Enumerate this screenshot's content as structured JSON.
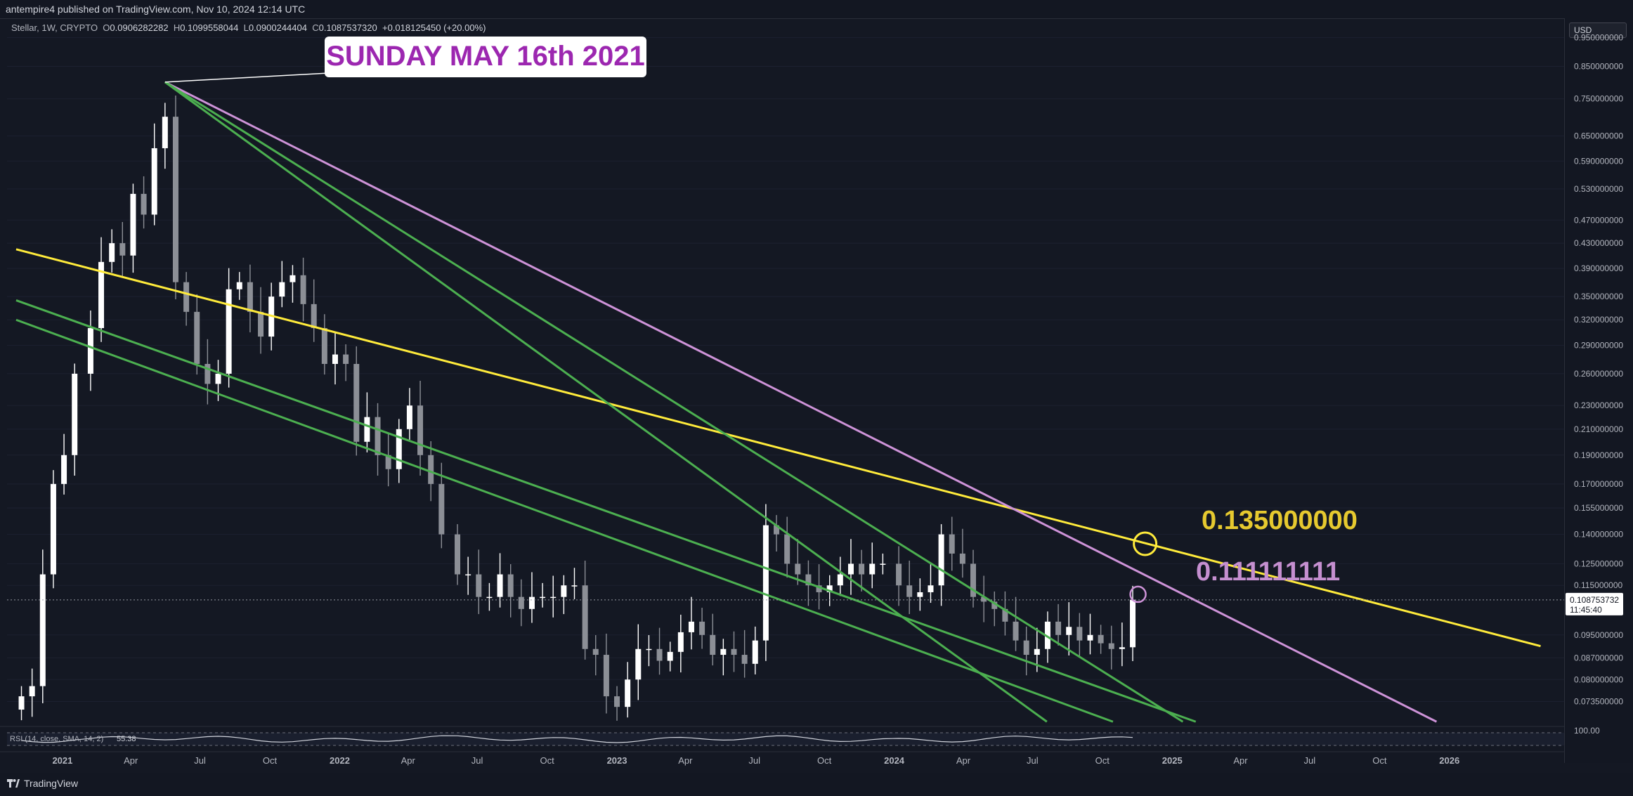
{
  "header": {
    "publisher": "antempire4 published on TradingView.com, Nov 10, 2024 12:14 UTC"
  },
  "legend": {
    "symbol": "Stellar, 1W, CRYPTO",
    "O_label": "O",
    "O": "0.0906282282",
    "H_label": "H",
    "H": "0.1099558044",
    "L_label": "L",
    "L": "0.0900244404",
    "C_label": "C",
    "C": "0.1087537320",
    "change": "+0.018125450 (+20.00%)"
  },
  "axis": {
    "currency": "USD"
  },
  "rsi": {
    "label": "RSI (14, close, SMA, 14, 2)",
    "value": "55.38",
    "scale_top": "100.00"
  },
  "brand": {
    "name": "TradingView"
  },
  "colors": {
    "bg": "#141823",
    "bull": "#ffffff",
    "bear": "#8c8f96",
    "yellow": "#ffeb3b",
    "purple": "#ce93d8",
    "green": "#4caf50",
    "callout": "#9c27b0"
  },
  "chart_data": {
    "type": "candlestick",
    "y_scale": "log",
    "ylim": [
      0.068,
      0.98
    ],
    "x_tick_labels": [
      "2021",
      "Apr",
      "Jul",
      "Oct",
      "2022",
      "Apr",
      "Jul",
      "Oct",
      "2023",
      "Apr",
      "Jul",
      "Oct",
      "2024",
      "Apr",
      "Jul",
      "Oct",
      "2025",
      "Apr",
      "Jul",
      "Oct",
      "2026"
    ],
    "y_tick_labels": [
      "0.950000000",
      "0.850000000",
      "0.750000000",
      "0.650000000",
      "0.590000000",
      "0.530000000",
      "0.470000000",
      "0.430000000",
      "0.390000000",
      "0.350000000",
      "0.320000000",
      "0.290000000",
      "0.260000000",
      "0.230000000",
      "0.210000000",
      "0.190000000",
      "0.170000000",
      "0.155000000",
      "0.140000000",
      "0.125000000",
      "0.115000000",
      "0.095000000",
      "0.087000000",
      "0.080000000",
      "0.073500000"
    ],
    "last_price": "0.108753732",
    "countdown": "11:45:40",
    "annotations": [
      {
        "text": "SUNDAY MAY 16th 2021",
        "target_date": "2021-05-16",
        "target_price": 0.8
      },
      {
        "text": "0.135000000",
        "price": 0.135,
        "color": "yellow"
      },
      {
        "text": "0.111111111",
        "price": 0.111111111,
        "color": "purple"
      }
    ],
    "trendlines": [
      {
        "color": "yellow",
        "from": [
          "2020-11-01",
          0.42
        ],
        "to": [
          "2026-05-01",
          0.091
        ]
      },
      {
        "color": "purple",
        "from": [
          "2021-05-16",
          0.8
        ],
        "to": [
          "2025-12-15",
          0.068
        ]
      },
      {
        "color": "green",
        "from": [
          "2021-05-16",
          0.8
        ],
        "to": [
          "2024-07-20",
          0.068
        ]
      },
      {
        "color": "green",
        "from": [
          "2021-05-16",
          0.8
        ],
        "to": [
          "2025-01-15",
          0.068
        ]
      },
      {
        "color": "green",
        "from": [
          "2020-11-01",
          0.345
        ],
        "to": [
          "2025-02-01",
          0.068
        ]
      },
      {
        "color": "green",
        "from": [
          "2020-11-01",
          0.32
        ],
        "to": [
          "2024-10-15",
          0.068
        ]
      }
    ],
    "weekly_close": [
      [
        "2020-11-08",
        0.075
      ],
      [
        "2020-11-22",
        0.078
      ],
      [
        "2020-12-06",
        0.12
      ],
      [
        "2020-12-20",
        0.17
      ],
      [
        "2021-01-03",
        0.19
      ],
      [
        "2021-01-17",
        0.26
      ],
      [
        "2021-02-07",
        0.31
      ],
      [
        "2021-02-21",
        0.4
      ],
      [
        "2021-03-07",
        0.43
      ],
      [
        "2021-03-21",
        0.41
      ],
      [
        "2021-04-04",
        0.52
      ],
      [
        "2021-04-18",
        0.48
      ],
      [
        "2021-05-02",
        0.62
      ],
      [
        "2021-05-16",
        0.7
      ],
      [
        "2021-05-30",
        0.37
      ],
      [
        "2021-06-13",
        0.33
      ],
      [
        "2021-06-27",
        0.27
      ],
      [
        "2021-07-11",
        0.25
      ],
      [
        "2021-07-25",
        0.26
      ],
      [
        "2021-08-08",
        0.36
      ],
      [
        "2021-08-22",
        0.37
      ],
      [
        "2021-09-05",
        0.33
      ],
      [
        "2021-09-19",
        0.3
      ],
      [
        "2021-10-03",
        0.35
      ],
      [
        "2021-10-17",
        0.37
      ],
      [
        "2021-10-31",
        0.38
      ],
      [
        "2021-11-14",
        0.34
      ],
      [
        "2021-11-28",
        0.31
      ],
      [
        "2021-12-12",
        0.27
      ],
      [
        "2021-12-26",
        0.28
      ],
      [
        "2022-01-09",
        0.27
      ],
      [
        "2022-01-23",
        0.2
      ],
      [
        "2022-02-06",
        0.22
      ],
      [
        "2022-02-20",
        0.19
      ],
      [
        "2022-03-06",
        0.18
      ],
      [
        "2022-03-20",
        0.21
      ],
      [
        "2022-04-03",
        0.23
      ],
      [
        "2022-04-17",
        0.19
      ],
      [
        "2022-05-01",
        0.17
      ],
      [
        "2022-05-15",
        0.14
      ],
      [
        "2022-06-05",
        0.12
      ],
      [
        "2022-06-19",
        0.12
      ],
      [
        "2022-07-03",
        0.11
      ],
      [
        "2022-07-17",
        0.11
      ],
      [
        "2022-07-31",
        0.12
      ],
      [
        "2022-08-14",
        0.11
      ],
      [
        "2022-08-28",
        0.105
      ],
      [
        "2022-09-11",
        0.11
      ],
      [
        "2022-09-25",
        0.11
      ],
      [
        "2022-10-09",
        0.11
      ],
      [
        "2022-10-23",
        0.115
      ],
      [
        "2022-11-06",
        0.115
      ],
      [
        "2022-11-20",
        0.09
      ],
      [
        "2022-12-04",
        0.088
      ],
      [
        "2022-12-18",
        0.075
      ],
      [
        "2023-01-01",
        0.072
      ],
      [
        "2023-01-15",
        0.08
      ],
      [
        "2023-01-29",
        0.09
      ],
      [
        "2023-02-12",
        0.09
      ],
      [
        "2023-02-26",
        0.086
      ],
      [
        "2023-03-12",
        0.089
      ],
      [
        "2023-03-26",
        0.096
      ],
      [
        "2023-04-09",
        0.1
      ],
      [
        "2023-04-23",
        0.095
      ],
      [
        "2023-05-07",
        0.088
      ],
      [
        "2023-05-21",
        0.09
      ],
      [
        "2023-06-04",
        0.088
      ],
      [
        "2023-06-18",
        0.085
      ],
      [
        "2023-07-02",
        0.093
      ],
      [
        "2023-07-16",
        0.145
      ],
      [
        "2023-07-30",
        0.14
      ],
      [
        "2023-08-13",
        0.125
      ],
      [
        "2023-08-27",
        0.12
      ],
      [
        "2023-09-10",
        0.115
      ],
      [
        "2023-09-24",
        0.112
      ],
      [
        "2023-10-08",
        0.115
      ],
      [
        "2023-10-22",
        0.12
      ],
      [
        "2023-11-05",
        0.125
      ],
      [
        "2023-11-19",
        0.12
      ],
      [
        "2023-12-03",
        0.125
      ],
      [
        "2023-12-17",
        0.125
      ],
      [
        "2024-01-07",
        0.115
      ],
      [
        "2024-01-21",
        0.11
      ],
      [
        "2024-02-04",
        0.112
      ],
      [
        "2024-02-18",
        0.115
      ],
      [
        "2024-03-03",
        0.14
      ],
      [
        "2024-03-17",
        0.13
      ],
      [
        "2024-03-31",
        0.125
      ],
      [
        "2024-04-14",
        0.11
      ],
      [
        "2024-04-28",
        0.108
      ],
      [
        "2024-05-12",
        0.105
      ],
      [
        "2024-05-26",
        0.1
      ],
      [
        "2024-06-09",
        0.093
      ],
      [
        "2024-06-23",
        0.088
      ],
      [
        "2024-07-07",
        0.09
      ],
      [
        "2024-07-21",
        0.1
      ],
      [
        "2024-08-04",
        0.095
      ],
      [
        "2024-08-18",
        0.098
      ],
      [
        "2024-09-01",
        0.093
      ],
      [
        "2024-09-15",
        0.095
      ],
      [
        "2024-09-29",
        0.092
      ],
      [
        "2024-10-13",
        0.09
      ],
      [
        "2024-10-27",
        0.0906
      ],
      [
        "2024-11-10",
        0.1088
      ]
    ]
  }
}
